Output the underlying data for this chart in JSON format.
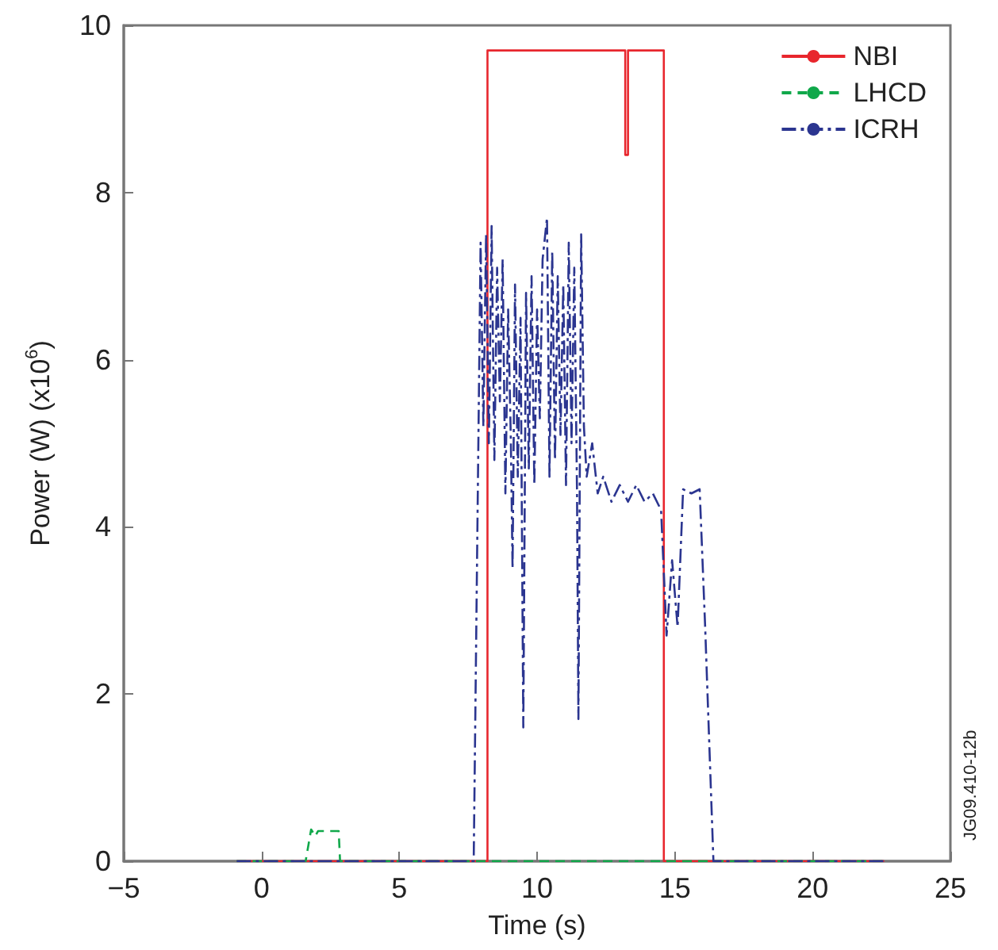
{
  "chart_data": {
    "type": "line",
    "xlabel": "Time (s)",
    "ylabel": "Power (W) (x10$^{6}$)",
    "xlim": [
      -5,
      25
    ],
    "xticks": [
      -5,
      0,
      5,
      10,
      15,
      20,
      25
    ],
    "ylim": [
      0,
      10
    ],
    "yticks": [
      0,
      2,
      4,
      6,
      8,
      10
    ],
    "grid": false,
    "legend": "top right",
    "marker": "none",
    "annotations": [
      "JG09.410-12b"
    ],
    "series": [
      {
        "name": "NBI",
        "color": "#e8262d",
        "line_style": "solid",
        "x": [
          -0.9,
          8.2,
          8.2,
          13.2,
          13.2,
          13.3,
          13.3,
          14.6,
          14.6,
          22.6
        ],
        "values": [
          0,
          0,
          9.7,
          9.7,
          8.45,
          8.45,
          9.7,
          9.7,
          0,
          0
        ]
      },
      {
        "name": "LHCD",
        "color": "#10a84a",
        "line_style": "dashed",
        "x": [
          -0.9,
          1.6,
          1.8,
          1.95,
          2.05,
          2.8,
          2.85,
          22.6
        ],
        "values": [
          0,
          0,
          0.38,
          0.3,
          0.36,
          0.36,
          0,
          0
        ]
      },
      {
        "name": "ICRH",
        "color": "#2b3590",
        "line_style": "dashdot",
        "x": [
          -0.9,
          7.7,
          7.95,
          8.05,
          8.15,
          8.25,
          8.35,
          8.45,
          8.55,
          8.65,
          8.75,
          8.85,
          8.95,
          9.05,
          9.11,
          9.2,
          9.3,
          9.4,
          9.5,
          9.6,
          9.7,
          9.8,
          9.9,
          10.0,
          10.1,
          10.2,
          10.36,
          10.45,
          10.55,
          10.65,
          10.75,
          10.85,
          10.95,
          11.05,
          11.15,
          11.25,
          11.35,
          11.45,
          11.5,
          11.6,
          11.7,
          11.8,
          12.0,
          12.2,
          12.4,
          12.7,
          13.0,
          13.3,
          13.6,
          13.9,
          14.2,
          14.5,
          14.7,
          14.9,
          15.1,
          15.3,
          15.6,
          15.9,
          16.1,
          16.4,
          22.6
        ],
        "values": [
          0,
          0,
          7.4,
          5.2,
          7.5,
          5.0,
          7.6,
          4.8,
          7.1,
          5.5,
          7.2,
          4.4,
          6.6,
          5.0,
          3.5,
          6.9,
          4.6,
          6.5,
          1.6,
          6.8,
          4.7,
          7.0,
          4.5,
          6.6,
          5.3,
          7.2,
          7.7,
          4.6,
          7.3,
          4.8,
          7.0,
          5.1,
          6.9,
          4.5,
          7.4,
          5.0,
          7.1,
          4.4,
          1.7,
          7.5,
          5.2,
          4.6,
          5.0,
          4.4,
          4.6,
          4.3,
          4.5,
          4.3,
          4.5,
          4.3,
          4.4,
          4.2,
          2.7,
          3.6,
          2.8,
          4.45,
          4.4,
          4.45,
          2.8,
          0,
          0
        ]
      }
    ]
  }
}
